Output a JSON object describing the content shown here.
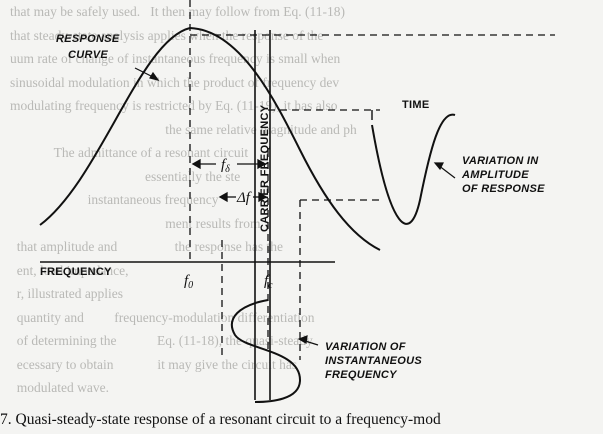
{
  "background_text": [
    "that may be safely used.   It then may follow from Eq. (11-18)",
    "that steady-state analysis applies when the response of the",
    "uum rate of change of instantaneous frequency is small when",
    "sinusoidal modulation in which the product of frequency dev",
    "modulating frequency is restricted by Eq. (11-19), it has also",
    "                                              the same relative magnitude and ph",
    "             The admittance of a resonant circuit",
    "                                        essentially the ste",
    "                       instantaneous frequency",
    "                                              ment results from",
    "  that amplitude and                 the response has the",
    "  ent, load impedance,",
    "  r, illustrated applies",
    "  quantity and         frequency-modulation differentiation",
    "  of determining the            Eq. (11-18), the quasi-steady",
    "  ecessary to obtain             it may give the circuit has",
    "  modulated wave."
  ],
  "labels": {
    "response_curve_line1": "RESPONSE",
    "response_curve_line2": "CURVE",
    "time": "TIME",
    "variation_amplitude_1": "VARIATION IN",
    "variation_amplitude_2": "AMPLITUDE",
    "variation_amplitude_3": "OF RESPONSE",
    "carrier_frequency": "CARRIER FREQUENCY",
    "frequency": "FREQUENCY",
    "f0_main": "f",
    "f0_sub": "0",
    "fc_main": "f",
    "fc_sub": "c",
    "fdelta_main": "f",
    "fdelta_sub": "δ",
    "delta_f": "Δf",
    "variation_instant_1": "VARIATION OF",
    "variation_instant_2": "INSTANTANEOUS",
    "variation_instant_3": "FREQUENCY"
  },
  "caption": "7. Quasi-steady-state response of a resonant circuit to a frequency-mod"
}
